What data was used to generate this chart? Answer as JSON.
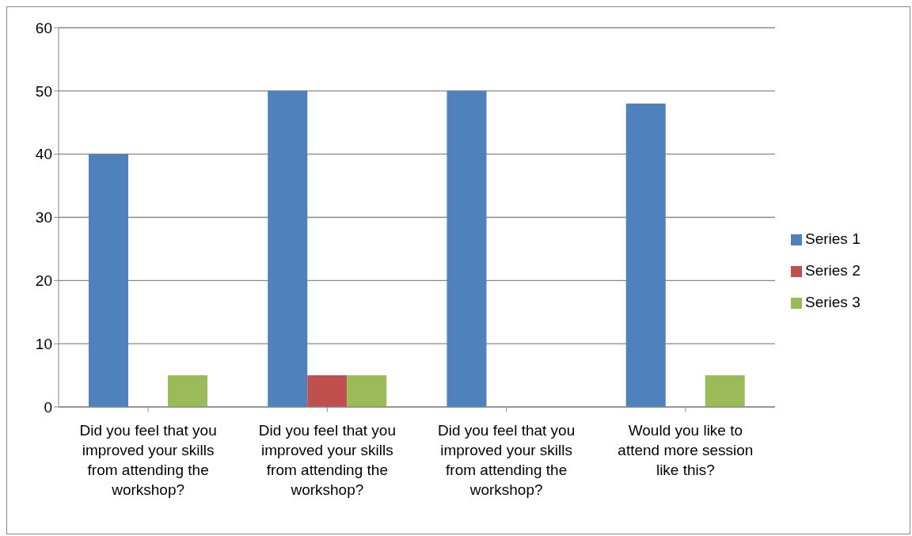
{
  "chart_data": {
    "type": "bar",
    "categories": [
      "Did you feel that you improved your skills from attending the workshop?",
      "Did you feel that you improved your skills from attending the workshop?",
      "Did you feel that you improved your skills from attending the workshop?",
      "Would you like to attend more session like this?"
    ],
    "series": [
      {
        "name": "Series 1",
        "color": "#4f81bd",
        "values": [
          40,
          50,
          50,
          48
        ]
      },
      {
        "name": "Series 2",
        "color": "#c0504d",
        "values": [
          0,
          5,
          0,
          0
        ]
      },
      {
        "name": "Series 3",
        "color": "#9bbb59",
        "values": [
          5,
          5,
          0,
          5
        ]
      }
    ],
    "ylim": [
      0,
      60
    ],
    "yticks": [
      0,
      10,
      20,
      30,
      40,
      50,
      60
    ],
    "grid": "y",
    "legend": "right"
  }
}
